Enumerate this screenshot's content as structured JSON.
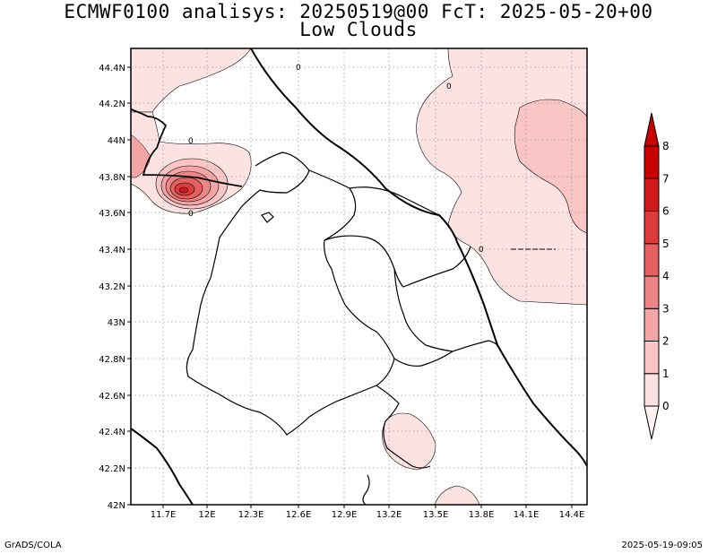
{
  "title": {
    "line1": "ECMWF0100 analisys: 20250519@00 FcT: 2025-05-20+00",
    "line2": "Low Clouds"
  },
  "footer": {
    "left": "GrADS/COLA",
    "right": "2025-05-19-09:05"
  },
  "axes": {
    "lon_ticks": [
      "11.7E",
      "12E",
      "12.3E",
      "12.6E",
      "12.9E",
      "13.2E",
      "13.5E",
      "13.8E",
      "14.1E",
      "14.4E"
    ],
    "lat_ticks": [
      "44.4N",
      "44.2N",
      "44N",
      "43.8N",
      "43.6N",
      "43.4N",
      "43.2N",
      "43N",
      "42.8N",
      "42.6N",
      "42.4N",
      "42.2N",
      "42N"
    ],
    "lon_range": [
      11.5,
      15.0
    ],
    "lat_range": [
      42.0,
      44.5
    ],
    "grid": true
  },
  "colorbar": {
    "levels": [
      "0",
      "1",
      "2",
      "3",
      "4",
      "5",
      "6",
      "7",
      "8"
    ],
    "colors": [
      "#fff1f1",
      "#fde2e2",
      "#f9c5c5",
      "#f4a6a6",
      "#ee8585",
      "#e56060",
      "#dc3c3c",
      "#d11a1a",
      "#c80000"
    ]
  },
  "contour_labels": [
    "0",
    "0",
    "0",
    "0",
    "0"
  ],
  "field": {
    "variable": "Low Clouds",
    "max_value": 8
  }
}
